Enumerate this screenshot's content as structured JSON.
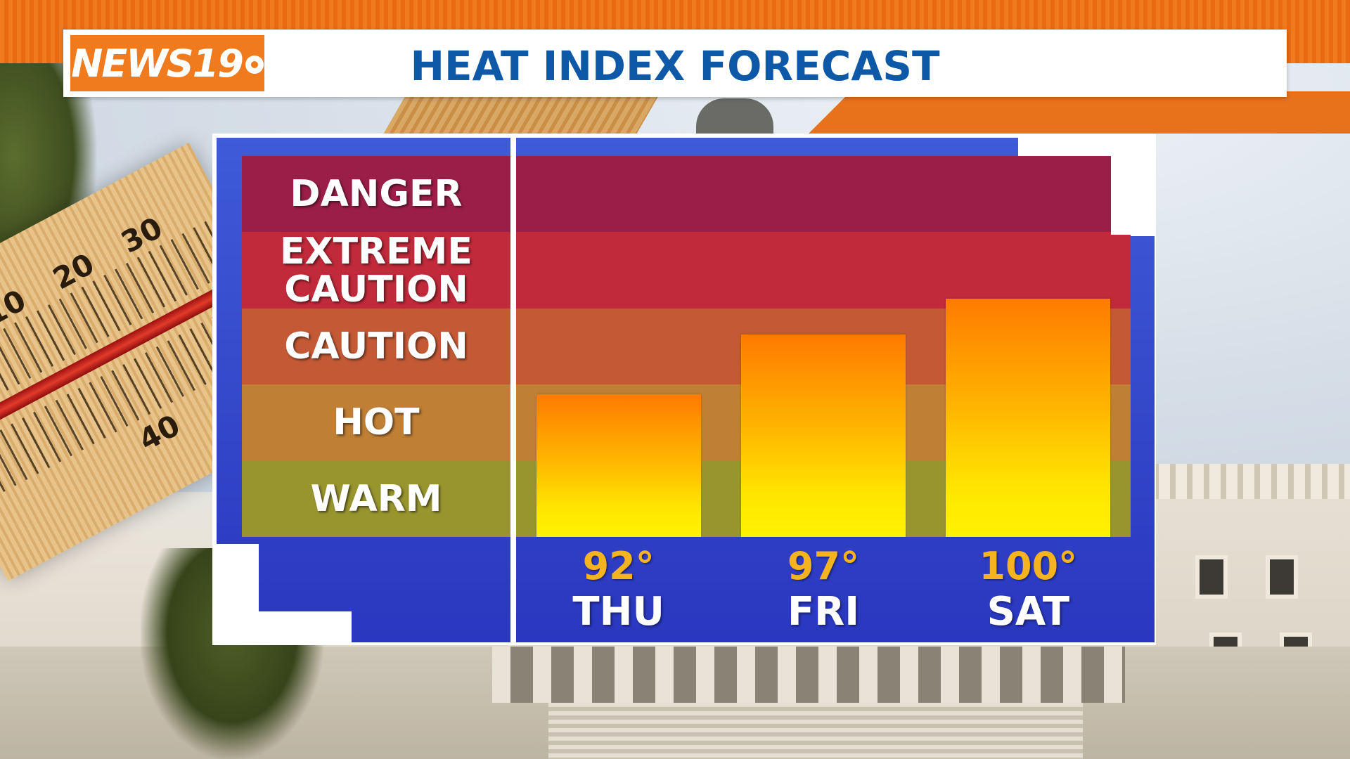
{
  "header": {
    "logo_text": "NEWS19",
    "title": "HEAT INDEX FORECAST"
  },
  "colors": {
    "brand_orange": "#f07a1e",
    "title_blue": "#0e58a8",
    "panel_blue": "#2a37c0",
    "value_gold": "#f6b320"
  },
  "bands": [
    {
      "label": "DANGER",
      "color": "#9b1e48"
    },
    {
      "label": "EXTREME\nCAUTION",
      "color": "#c02a3a"
    },
    {
      "label": "CAUTION",
      "color": "#c35a35"
    },
    {
      "label": "HOT",
      "color": "#bf7f35"
    },
    {
      "label": "WARM",
      "color": "#98952f"
    }
  ],
  "chart_data": {
    "type": "bar",
    "title": "HEAT INDEX FORECAST",
    "categories": [
      "THU",
      "FRI",
      "SAT"
    ],
    "values": [
      92,
      97,
      100
    ],
    "value_labels": [
      "92°",
      "97°",
      "100°"
    ],
    "unit": "°",
    "ylim": [
      80,
      112
    ],
    "y_bands": [
      "WARM",
      "HOT",
      "CAUTION",
      "EXTREME CAUTION",
      "DANGER"
    ],
    "legend": "none",
    "grid": false
  }
}
